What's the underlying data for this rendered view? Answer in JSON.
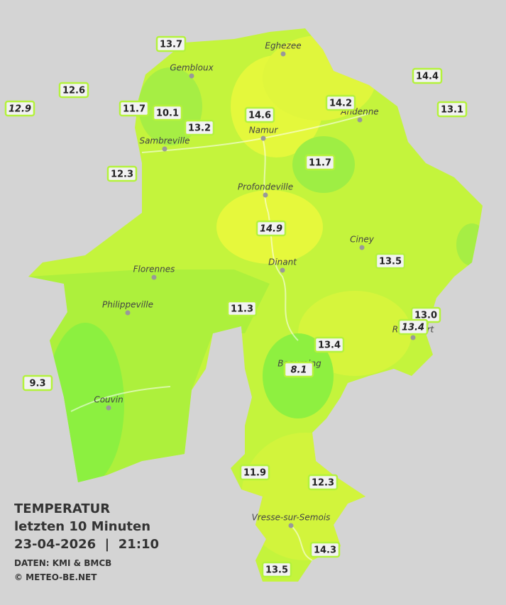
{
  "legend": {
    "title": "TEMPERATUR",
    "subtitle": "letzten 10 Minuten",
    "datetime": "23-04-2026  |  21:10",
    "source": "DATEN: KMI & BMCB",
    "copyright": "© METEO-BE.NET"
  },
  "towns": [
    "Eghezee",
    "Gembloux",
    "Andenne",
    "Namur",
    "Sambreville",
    "Profondeville",
    "Ciney",
    "Dinant",
    "Florennes",
    "Philippeville",
    "Couvin",
    "Vresse-sur-Semois",
    "Rochefort",
    "Beauraing"
  ],
  "stations": [
    "13.7",
    "12.6",
    "12.9",
    "11.7",
    "10.1",
    "13.2",
    "14.6",
    "14.2",
    "14.4",
    "13.1",
    "12.3",
    "11.7",
    "14.9",
    "13.5",
    "11.3",
    "13.0",
    "13.4",
    "13.4",
    "8.1",
    "9.3",
    "11.9",
    "12.3",
    "14.3",
    "13.5"
  ]
}
